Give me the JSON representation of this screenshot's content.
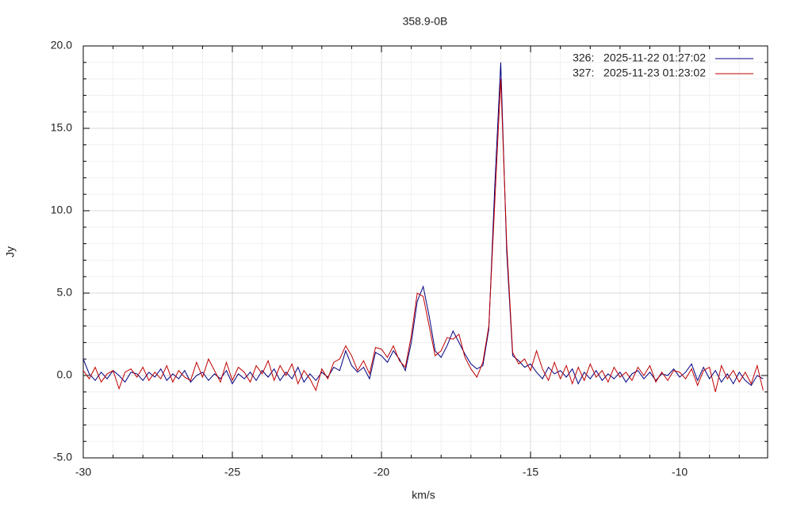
{
  "chart_data": {
    "type": "line",
    "title": "358.9-0B",
    "xlabel": "km/s",
    "ylabel": "Jy",
    "xlim": [
      -30,
      -7.05
    ],
    "ylim": [
      -5,
      20
    ],
    "xticks": [
      -30,
      -25,
      -20,
      -15,
      -10
    ],
    "yticks": [
      {
        "value": 20,
        "label": "20.0"
      },
      {
        "value": 15,
        "label": "15.0"
      },
      {
        "value": 10,
        "label": "10.0"
      },
      {
        "value": 5,
        "label": "5.0"
      },
      {
        "value": 0,
        "label": "0.0"
      },
      {
        "value": -5,
        "label": "-5.0"
      }
    ],
    "xminorticks": [
      -29,
      -28,
      -27,
      -26,
      -24,
      -23,
      -22,
      -21,
      -19,
      -18,
      -17,
      -16,
      -14,
      -13,
      -12,
      -11,
      -9,
      -8
    ],
    "yminorticks": [
      -4,
      -3,
      -2,
      -1,
      1,
      2,
      3,
      4,
      6,
      7,
      8,
      9,
      11,
      12,
      13,
      14,
      16,
      17,
      18,
      19
    ],
    "grid": true,
    "legend": "upper right",
    "x": [
      -30,
      -29.8,
      -29.6,
      -29.4,
      -29.2,
      -29,
      -28.8,
      -28.6,
      -28.4,
      -28.2,
      -28,
      -27.8,
      -27.6,
      -27.4,
      -27.2,
      -27,
      -26.8,
      -26.6,
      -26.4,
      -26.2,
      -26,
      -25.8,
      -25.6,
      -25.4,
      -25.2,
      -25,
      -24.8,
      -24.6,
      -24.4,
      -24.2,
      -24,
      -23.8,
      -23.6,
      -23.4,
      -23.2,
      -23,
      -22.8,
      -22.6,
      -22.4,
      -22.2,
      -22,
      -21.8,
      -21.6,
      -21.4,
      -21.2,
      -21,
      -20.8,
      -20.6,
      -20.4,
      -20.2,
      -20,
      -19.8,
      -19.6,
      -19.4,
      -19.2,
      -19,
      -18.8,
      -18.6,
      -18.4,
      -18.2,
      -18,
      -17.8,
      -17.6,
      -17.4,
      -17.2,
      -17,
      -16.8,
      -16.6,
      -16.4,
      -16.2,
      -16,
      -15.8,
      -15.6,
      -15.4,
      -15.2,
      -15,
      -14.8,
      -14.6,
      -14.4,
      -14.2,
      -14,
      -13.8,
      -13.6,
      -13.4,
      -13.2,
      -13,
      -12.8,
      -12.6,
      -12.4,
      -12.2,
      -12,
      -11.8,
      -11.6,
      -11.4,
      -11.2,
      -11,
      -10.8,
      -10.6,
      -10.4,
      -10.2,
      -10,
      -9.8,
      -9.6,
      -9.4,
      -9.2,
      -9,
      -8.8,
      -8.6,
      -8.4,
      -8.2,
      -8,
      -7.8,
      -7.6,
      -7.4,
      -7.2
    ],
    "series": [
      {
        "name": "326:   2025-11-22 01:27:02",
        "color": "#000080",
        "values": [
          1.0,
          0.1,
          -0.3,
          0.2,
          -0.2,
          0.3,
          0.0,
          -0.4,
          0.2,
          0.1,
          -0.3,
          0.2,
          -0.1,
          0.4,
          -0.3,
          0.1,
          -0.2,
          0.3,
          -0.4,
          0.0,
          0.2,
          -0.3,
          0.1,
          -0.2,
          0.3,
          -0.5,
          0.1,
          -0.2,
          0.2,
          -0.3,
          0.3,
          -0.1,
          0.4,
          -0.3,
          0.2,
          -0.2,
          0.5,
          -0.4,
          0.1,
          -0.3,
          0.2,
          -0.1,
          0.5,
          0.3,
          1.5,
          0.6,
          0.2,
          0.5,
          -0.2,
          1.4,
          1.2,
          0.8,
          1.5,
          1.0,
          0.3,
          2.0,
          4.5,
          5.4,
          3.6,
          1.5,
          1.1,
          1.8,
          2.7,
          2.0,
          1.3,
          0.7,
          0.4,
          0.6,
          2.8,
          11.5,
          19.0,
          7.5,
          1.2,
          0.9,
          0.5,
          0.7,
          0.2,
          -0.2,
          0.5,
          0.1,
          0.3,
          -0.1,
          0.4,
          -0.5,
          0.2,
          -0.2,
          0.3,
          -0.3,
          0.1,
          -0.2,
          0.2,
          -0.4,
          0.1,
          0.3,
          -0.2,
          0.2,
          -0.3,
          0.1,
          0.0,
          0.4,
          -0.1,
          0.2,
          0.7,
          -0.3,
          0.5,
          -0.2,
          0.3,
          -0.4,
          0.1,
          -0.5,
          0.2,
          -0.3,
          -0.6,
          0.0,
          -0.2
        ]
      },
      {
        "name": "327:   2025-11-23 01:23:02",
        "color": "#c00000",
        "values": [
          0.3,
          -0.2,
          0.5,
          -0.4,
          0.1,
          0.3,
          -0.8,
          0.2,
          0.4,
          -0.1,
          0.5,
          -0.3,
          0.2,
          -0.2,
          0.6,
          -0.4,
          0.3,
          -0.1,
          -0.3,
          0.8,
          -0.1,
          1.0,
          0.3,
          -0.4,
          0.8,
          -0.3,
          0.5,
          0.2,
          -0.4,
          0.6,
          0.1,
          0.9,
          -0.3,
          0.6,
          0.0,
          0.7,
          -0.5,
          0.3,
          -0.2,
          -0.9,
          0.4,
          -0.2,
          0.8,
          1.0,
          1.8,
          1.2,
          0.3,
          0.9,
          0.1,
          1.7,
          1.6,
          1.1,
          1.8,
          0.9,
          0.5,
          2.4,
          5.0,
          4.8,
          3.0,
          1.2,
          1.5,
          2.3,
          2.2,
          2.5,
          1.1,
          0.4,
          -0.1,
          0.8,
          3.0,
          10.5,
          18.0,
          8.0,
          1.4,
          0.7,
          1.0,
          0.3,
          1.5,
          0.4,
          -0.3,
          0.8,
          -0.2,
          0.6,
          -0.5,
          0.5,
          -0.3,
          0.7,
          -0.1,
          0.3,
          -0.4,
          0.5,
          -0.1,
          0.2,
          -0.3,
          0.5,
          0.0,
          0.6,
          -0.4,
          0.2,
          -0.3,
          0.3,
          0.2,
          -0.2,
          0.4,
          -0.6,
          0.3,
          0.5,
          -1.0,
          0.6,
          -0.2,
          0.3,
          -0.4,
          0.2,
          -0.5,
          0.6,
          -0.9
        ]
      }
    ]
  }
}
